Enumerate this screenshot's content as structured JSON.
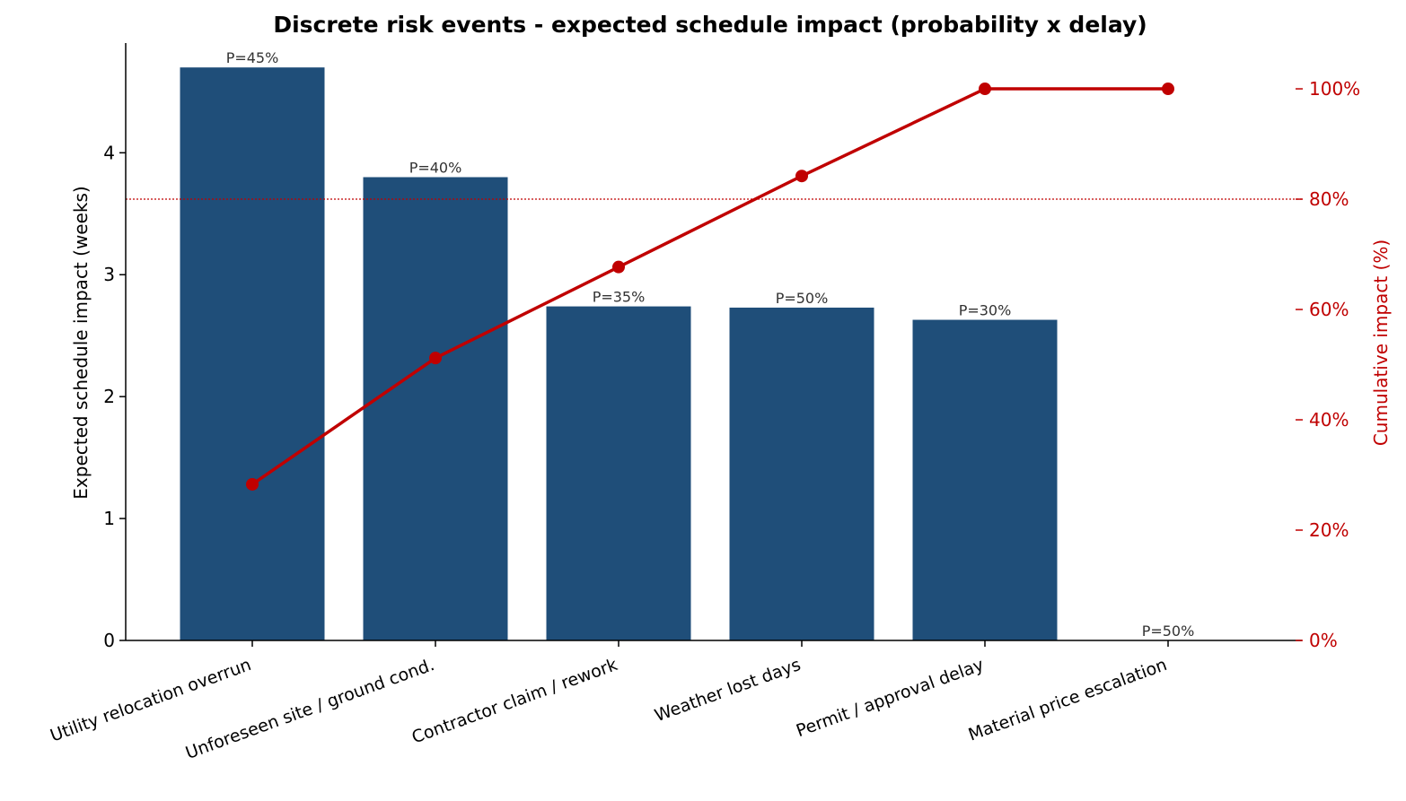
{
  "chart_data": {
    "type": "bar",
    "title": "Discrete risk events - expected schedule impact (probability x delay)",
    "categories": [
      "Utility relocation overrun",
      "Unforeseen site / ground cond.",
      "Contractor claim / rework",
      "Weather lost days",
      "Permit / approval delay",
      "Material price escalation"
    ],
    "series": [
      {
        "values": [
          4.7,
          3.8,
          2.74,
          2.73,
          2.63,
          0.0
        ]
      }
    ],
    "bar_labels": [
      "P=45%",
      "P=40%",
      "P=35%",
      "P=50%",
      "P=30%",
      "P=50%"
    ],
    "cumulative_pct": [
      28.3,
      51.2,
      67.7,
      84.2,
      100.0,
      100.0
    ],
    "threshold_pct": 80,
    "ylabel": "Expected schedule impact  (weeks)",
    "ylim": [
      0,
      4.9
    ],
    "yticks": [
      0,
      1,
      2,
      3,
      4
    ],
    "y2label": "Cumulative impact  (%)",
    "y2lim": [
      0,
      108.3
    ],
    "y2ticks": [
      0,
      20,
      40,
      60,
      80,
      100
    ],
    "y2tick_suffix": "%",
    "colors": {
      "bar": "#1f4e79",
      "line": "#c00000",
      "threshold": "#c00000",
      "axis": "#000000",
      "bar_label": "#333333"
    },
    "grid": false,
    "legend": "none"
  }
}
